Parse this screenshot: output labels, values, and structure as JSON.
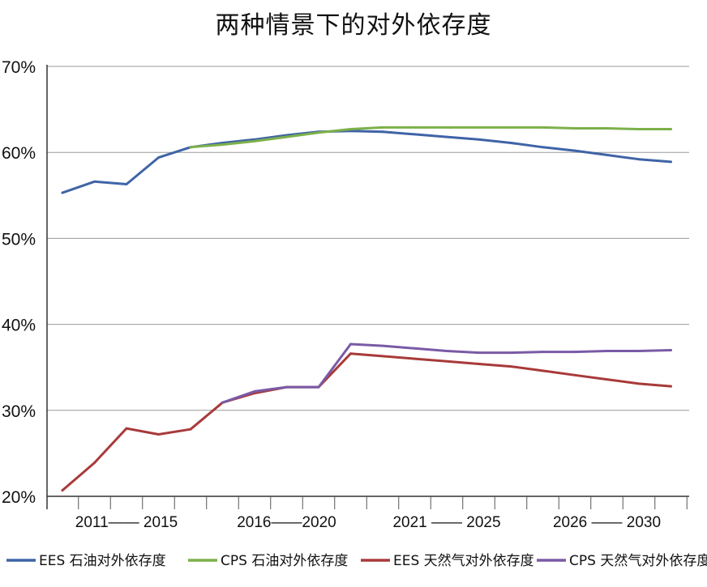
{
  "chart_data": {
    "type": "line",
    "title": "两种情景下的对外依存度",
    "xlabel": "",
    "ylabel": "",
    "ylim": [
      20,
      70
    ],
    "yticks": [
      "20%",
      "30%",
      "40%",
      "50%",
      "60%",
      "70%"
    ],
    "grid": true,
    "legend_position": "bottom",
    "x": [
      2011,
      2012,
      2013,
      2014,
      2015,
      2016,
      2017,
      2018,
      2019,
      2020,
      2021,
      2022,
      2023,
      2024,
      2025,
      2026,
      2027,
      2028,
      2029,
      2030
    ],
    "x_group_labels": [
      "2011—— 2015",
      "2016——2020",
      "2021 —— 2025",
      "2026 —— 2030"
    ],
    "series": [
      {
        "name": "EES 石油对外依存度",
        "color": "#3f64a6",
        "values": [
          55.3,
          56.6,
          56.3,
          59.4,
          60.6,
          61.1,
          61.5,
          62.0,
          62.4,
          62.5,
          62.4,
          62.1,
          61.8,
          61.5,
          61.1,
          60.6,
          60.2,
          59.7,
          59.2,
          58.9
        ]
      },
      {
        "name": "CPS 石油对外依存度",
        "color": "#7db04a",
        "values": [
          null,
          null,
          null,
          null,
          60.6,
          60.9,
          61.3,
          61.8,
          62.3,
          62.7,
          62.9,
          62.9,
          62.9,
          62.9,
          62.9,
          62.9,
          62.8,
          62.8,
          62.7,
          62.7
        ]
      },
      {
        "name": "EES 天然气对外依存度",
        "color": "#a83a3a",
        "values": [
          20.7,
          23.9,
          27.9,
          27.2,
          27.8,
          30.9,
          32.0,
          32.7,
          32.7,
          36.6,
          36.3,
          36.0,
          35.7,
          35.4,
          35.1,
          34.6,
          34.1,
          33.6,
          33.1,
          32.8
        ]
      },
      {
        "name": "CPS 天然气对外依存度",
        "color": "#7a5aa6",
        "values": [
          null,
          null,
          null,
          null,
          null,
          30.9,
          32.2,
          32.7,
          32.7,
          37.7,
          37.5,
          37.2,
          36.9,
          36.7,
          36.7,
          36.8,
          36.8,
          36.9,
          36.9,
          37.0
        ]
      }
    ]
  }
}
